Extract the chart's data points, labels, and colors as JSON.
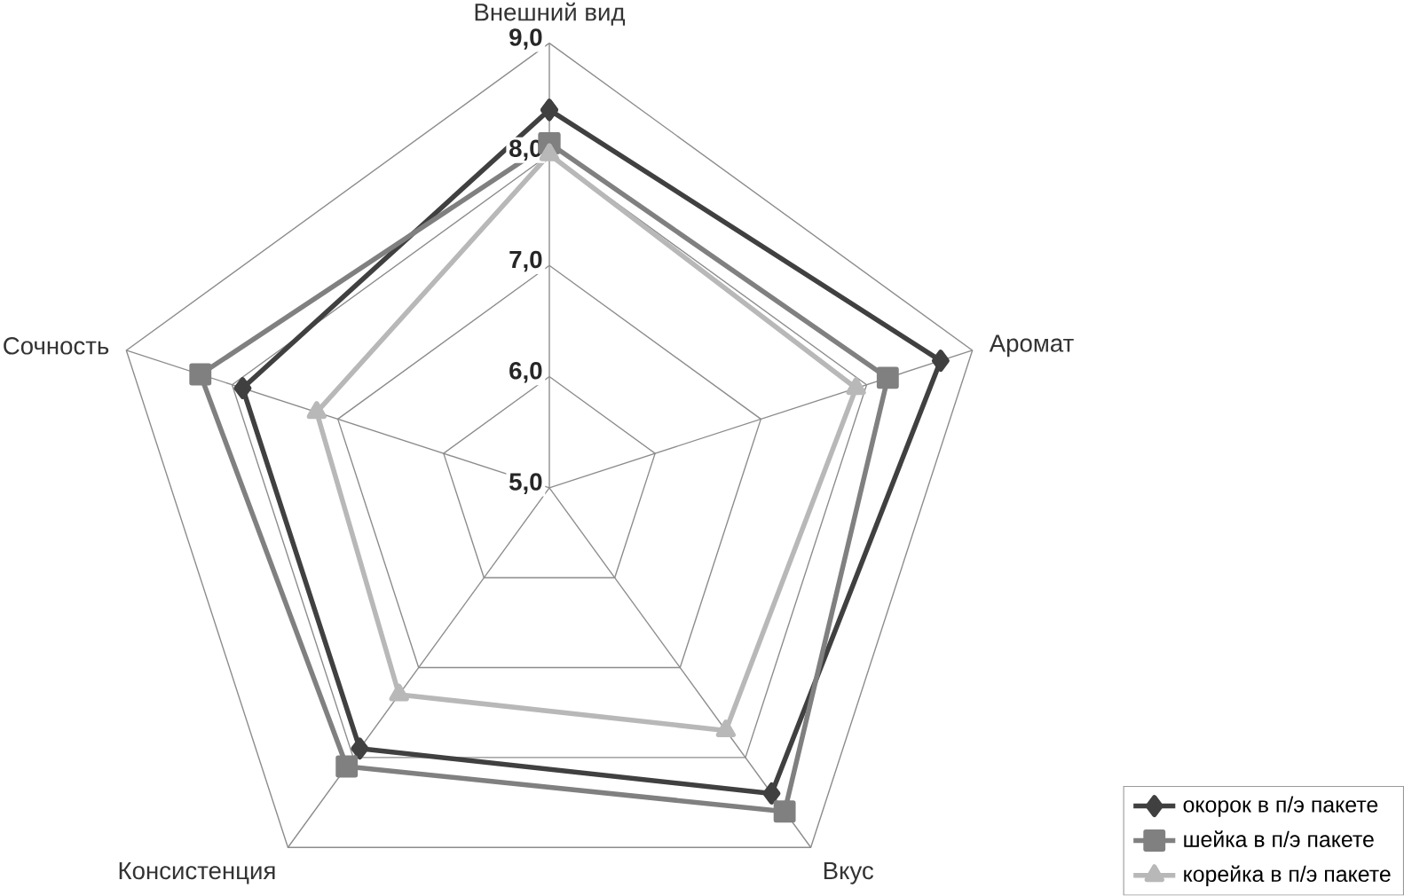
{
  "chart_data": {
    "type": "radar",
    "categories": [
      "Внешний вид",
      "Аромат",
      "Вкус",
      "Консистенция",
      "Сочность"
    ],
    "ylim": [
      5,
      9
    ],
    "yticks": [
      {
        "value": 5,
        "label": "5,0"
      },
      {
        "value": 6,
        "label": "6,0"
      },
      {
        "value": 7,
        "label": "7,0"
      },
      {
        "value": 8,
        "label": "8,0"
      },
      {
        "value": 9,
        "label": "9,0"
      }
    ],
    "grid": true,
    "legend": "bottom right",
    "line_style": "solid",
    "series": [
      {
        "name": "окорок в п/э пакете",
        "color": "#404040",
        "marker": "diamond",
        "values": [
          8.4,
          8.7,
          8.4,
          7.9,
          7.9
        ]
      },
      {
        "name": "шейка в п/э пакете",
        "color": "#808080",
        "marker": "square",
        "values": [
          8.1,
          8.2,
          8.6,
          8.1,
          8.3
        ]
      },
      {
        "name": "корейка в п/э пакете",
        "color": "#b8b8b8",
        "marker": "triangle",
        "values": [
          8.0,
          7.9,
          7.7,
          7.3,
          7.2
        ]
      }
    ]
  }
}
